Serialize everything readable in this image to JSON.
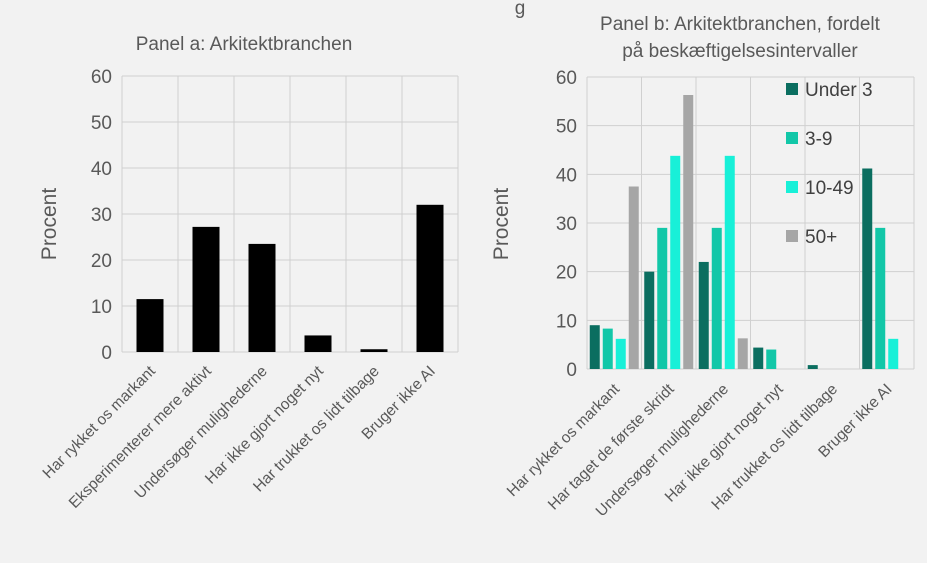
{
  "top_title_fragment": "g",
  "chart_data": [
    {
      "type": "bar",
      "title": "Panel a: Arkitektbranchen",
      "ylabel": "Procent",
      "ylim": [
        0,
        60
      ],
      "yticks": [
        "0",
        "10",
        "20",
        "30",
        "40",
        "50",
        "60"
      ],
      "categories": [
        "Har rykket os markant",
        "Eksperimenterer mere aktivt",
        "Undersøger mulighederne",
        "Har ikke gjort noget nyt",
        "Har trukket os lidt tilbage",
        "Bruger ikke AI"
      ],
      "series": [
        {
          "values": [
            11.5,
            27.2,
            23.5,
            3.6,
            0.6,
            32.0
          ],
          "color": "#000000"
        }
      ],
      "grid": true,
      "legend": "none"
    },
    {
      "type": "bar",
      "title": [
        "Panel b: Arkitektbranchen, fordelt",
        "på beskæftigelsesintervaller"
      ],
      "ylabel": "Procent",
      "ylim": [
        0,
        60
      ],
      "yticks": [
        "0",
        "10",
        "20",
        "30",
        "40",
        "50",
        "60"
      ],
      "categories": [
        "Har rykket os markant",
        "Har taget de første skridt",
        "Undersøger mulighederne",
        "Har ikke gjort noget nyt",
        "Har trukket os lidt tilbage",
        "Bruger ikke AI"
      ],
      "series": [
        {
          "name": "Under 3",
          "values": [
            9.0,
            20.0,
            22.0,
            4.4,
            0.8,
            41.2
          ],
          "color": "#0b6e60"
        },
        {
          "name": "3-9",
          "values": [
            8.3,
            29.0,
            29.0,
            4.0,
            0.0,
            29.0
          ],
          "color": "#12c7a8"
        },
        {
          "name": "10-49",
          "values": [
            6.2,
            43.8,
            43.8,
            0.0,
            0.0,
            6.2
          ],
          "color": "#18f0d8"
        },
        {
          "name": "50+",
          "values": [
            37.5,
            56.3,
            6.3,
            0.0,
            0.0,
            0.0
          ],
          "color": "#a6a6a6"
        }
      ],
      "grid": true,
      "legend": "top-right"
    }
  ]
}
